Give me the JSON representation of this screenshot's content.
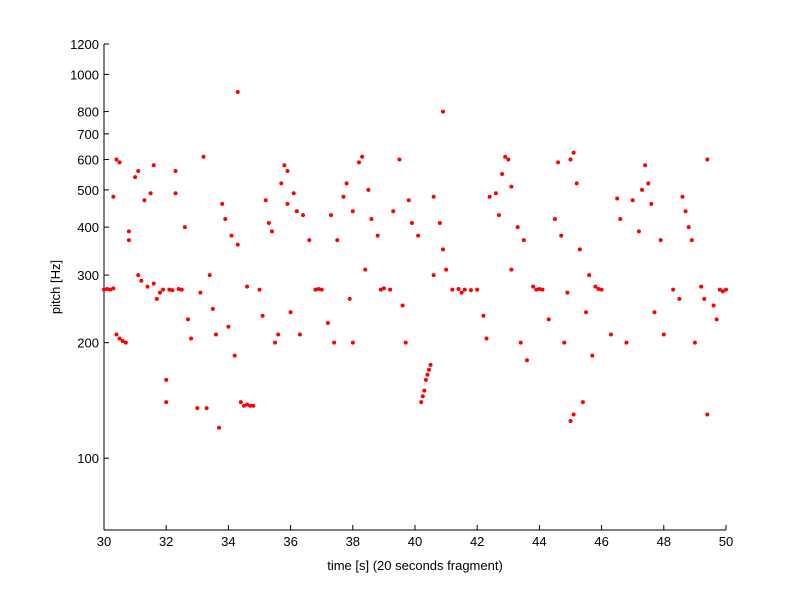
{
  "chart_data": {
    "type": "scatter",
    "x_label": "time [s] (20 seconds fragment)",
    "y_label": "pitch [Hz]",
    "xlim": [
      30,
      50
    ],
    "xticks": [
      30,
      32,
      34,
      36,
      38,
      40,
      42,
      44,
      46,
      48,
      50
    ],
    "ylim": [
      65,
      1200
    ],
    "yticks": [
      100,
      200,
      300,
      400,
      500,
      600,
      700,
      800,
      1000,
      1200
    ],
    "yscale": "log",
    "color": "#ff0000",
    "x": [
      30.0,
      30.1,
      30.2,
      30.3,
      30.3,
      30.4,
      30.5,
      30.4,
      30.5,
      30.6,
      30.7,
      30.8,
      30.8,
      31.0,
      31.1,
      31.1,
      31.2,
      31.3,
      31.4,
      31.5,
      31.6,
      31.7,
      31.8,
      32.0,
      32.0,
      31.6,
      31.9,
      32.1,
      32.2,
      32.3,
      32.4,
      32.3,
      32.5,
      32.6,
      32.7,
      32.8,
      33.0,
      33.2,
      33.3,
      33.1,
      33.4,
      33.5,
      33.6,
      33.7,
      33.8,
      33.9,
      34.0,
      34.1,
      34.2,
      34.3,
      34.3,
      34.4,
      34.5,
      34.6,
      34.7,
      34.8,
      34.6,
      35.0,
      35.1,
      35.2,
      35.3,
      35.4,
      35.5,
      35.6,
      35.7,
      35.8,
      35.9,
      35.9,
      36.0,
      36.1,
      36.2,
      36.3,
      36.4,
      36.6,
      36.8,
      36.9,
      37.0,
      37.2,
      37.3,
      37.4,
      37.5,
      37.7,
      37.8,
      37.9,
      38.0,
      38.0,
      38.2,
      38.3,
      38.4,
      38.5,
      38.6,
      38.8,
      38.9,
      39.0,
      39.2,
      39.3,
      39.5,
      39.6,
      39.7,
      39.8,
      39.9,
      40.1,
      40.2,
      40.25,
      40.3,
      40.35,
      40.4,
      40.45,
      40.5,
      40.6,
      40.6,
      40.8,
      40.9,
      40.9,
      41.0,
      41.2,
      41.4,
      41.5,
      41.6,
      41.8,
      42.0,
      42.2,
      42.3,
      42.4,
      42.6,
      42.7,
      42.8,
      42.9,
      43.0,
      43.1,
      43.1,
      43.3,
      43.4,
      43.5,
      43.6,
      43.8,
      43.9,
      44.0,
      44.1,
      44.3,
      44.5,
      44.6,
      44.7,
      44.8,
      44.9,
      45.0,
      45.1,
      45.0,
      45.1,
      45.2,
      45.3,
      45.4,
      45.5,
      45.6,
      45.7,
      45.8,
      45.9,
      46.0,
      46.3,
      46.5,
      46.6,
      46.8,
      47.0,
      47.2,
      47.3,
      47.4,
      47.5,
      47.6,
      47.7,
      47.9,
      48.0,
      48.3,
      48.5,
      48.6,
      48.7,
      48.8,
      48.9,
      49.0,
      49.2,
      49.3,
      49.4,
      49.4,
      49.6,
      49.7,
      49.8,
      49.9,
      50.0
    ],
    "values": [
      275,
      276,
      275,
      277,
      480,
      600,
      590,
      210,
      205,
      202,
      200,
      370,
      390,
      540,
      560,
      300,
      290,
      470,
      280,
      490,
      580,
      260,
      270,
      160,
      140,
      285,
      275,
      275,
      274,
      560,
      276,
      490,
      275,
      400,
      230,
      205,
      135,
      610,
      135,
      270,
      300,
      245,
      210,
      120,
      460,
      420,
      220,
      380,
      185,
      900,
      360,
      140,
      137,
      280,
      137,
      137,
      138,
      275,
      235,
      470,
      410,
      390,
      200,
      210,
      520,
      580,
      560,
      460,
      240,
      490,
      440,
      210,
      430,
      370,
      275,
      276,
      275,
      225,
      430,
      200,
      370,
      480,
      520,
      260,
      440,
      200,
      590,
      610,
      310,
      500,
      420,
      380,
      275,
      277,
      275,
      440,
      600,
      250,
      200,
      470,
      410,
      380,
      140,
      145,
      150,
      160,
      165,
      170,
      175,
      480,
      300,
      410,
      350,
      800,
      310,
      275,
      276,
      270,
      275,
      274,
      275,
      235,
      205,
      480,
      490,
      430,
      550,
      610,
      600,
      510,
      310,
      400,
      200,
      370,
      180,
      280,
      275,
      276,
      275,
      230,
      420,
      590,
      380,
      200,
      270,
      600,
      625,
      125,
      130,
      520,
      350,
      140,
      240,
      300,
      185,
      280,
      276,
      275,
      210,
      475,
      420,
      200,
      470,
      390,
      500,
      580,
      520,
      460,
      240,
      370,
      210,
      275,
      260,
      480,
      440,
      400,
      370,
      200,
      280,
      260,
      600,
      130,
      250,
      230,
      275,
      272,
      275
    ]
  }
}
